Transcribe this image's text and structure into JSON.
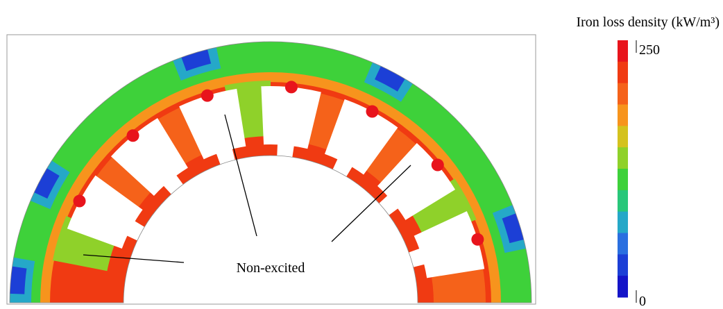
{
  "colorbar": {
    "title": "Iron loss density (kW/m³)",
    "max_label": "250",
    "min_label": "0",
    "colors": [
      "#e8141c",
      "#f03a12",
      "#f5621a",
      "#f7941d",
      "#d4c21e",
      "#8fd12a",
      "#3ed13a",
      "#28c77a",
      "#25a8c8",
      "#2a6fe0",
      "#1c3fd6",
      "#1414c8"
    ]
  },
  "annotation": {
    "label": "Non-excited"
  }
}
